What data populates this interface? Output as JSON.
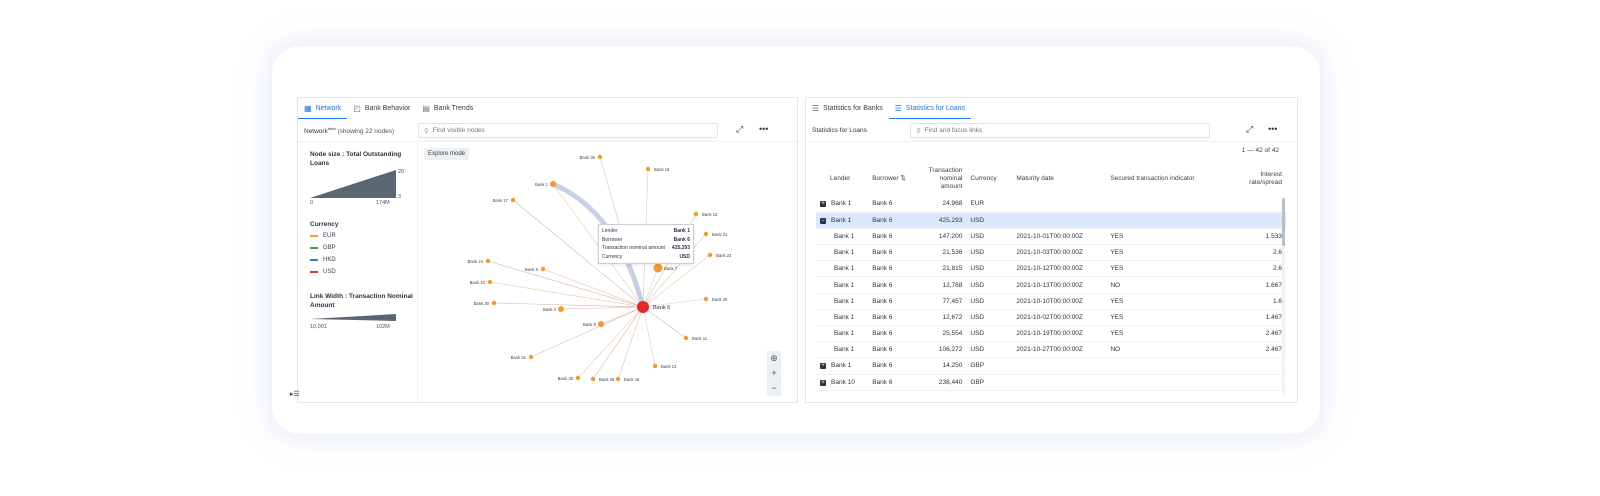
{
  "left": {
    "tabs": [
      {
        "label": "Network",
        "icon": "network-icon",
        "active": true
      },
      {
        "label": "Bank Behavior",
        "icon": "chart-icon",
        "active": false
      },
      {
        "label": "Bank Trends",
        "icon": "trends-icon",
        "active": false
      }
    ],
    "toolbar": {
      "title": "Network",
      "beta": "beta",
      "subtitle": "(showing 22 nodes)",
      "search_placeholder": "Find visible nodes"
    },
    "legend": {
      "node_size_title": "Node size : Total Outstanding Loans",
      "node_size_min": "0",
      "node_size_max": "174M",
      "node_size_small": "3",
      "node_size_large": "20",
      "currency_title": "Currency",
      "currencies": [
        {
          "label": "EUR",
          "color": "#f29a2e"
        },
        {
          "label": "GBP",
          "color": "#3ca64a"
        },
        {
          "label": "HKD",
          "color": "#2f7fd6"
        },
        {
          "label": "USD",
          "color": "#d33a2f"
        }
      ],
      "link_title": "Link Width : Transaction Nominal Amount",
      "link_min": "10,001",
      "link_max": "102M"
    },
    "explore_label": "Explore mode",
    "tooltip": {
      "rows": [
        {
          "k": "Lender",
          "v": "Bank 1"
        },
        {
          "k": "Borrower",
          "v": "Bank 6"
        },
        {
          "k": "Transaction nominal amount",
          "v": "425,293"
        },
        {
          "k": "Currency",
          "v": "USD"
        }
      ]
    },
    "center_node": "Bank 6",
    "nodes": [
      {
        "label": "Bank 36"
      },
      {
        "label": "Bank 16"
      },
      {
        "label": "Bank 1"
      },
      {
        "label": "Bank 17"
      },
      {
        "label": "Bank 13"
      },
      {
        "label": "Bank 21"
      },
      {
        "label": "Bank 23"
      },
      {
        "label": "Bank 24"
      },
      {
        "label": "Bank 9"
      },
      {
        "label": "Bank 7"
      },
      {
        "label": "Bank 10"
      },
      {
        "label": "Bank 30"
      },
      {
        "label": "Bank 4"
      },
      {
        "label": "Bank 20"
      },
      {
        "label": "Bank 5"
      },
      {
        "label": "Bank 11"
      },
      {
        "label": "Bank 31"
      },
      {
        "label": "Bank 13"
      },
      {
        "label": "Bank 35"
      },
      {
        "label": "Bank 26"
      },
      {
        "label": "Bank 18"
      }
    ]
  },
  "right": {
    "tabs": [
      {
        "label": "Statistics for Banks",
        "icon": "list-icon",
        "active": false
      },
      {
        "label": "Statistics for Loans",
        "icon": "list-icon",
        "active": true
      }
    ],
    "toolbar": {
      "title": "Statistics for Loans",
      "search_placeholder": "Find and focus links"
    },
    "count": "1 — 42 of 42",
    "columns": [
      "Lender",
      "Borrower",
      "Transaction nominal amount",
      "Currency",
      "Maturity date",
      "Secured transaction indicator",
      "Interest rate/spread"
    ],
    "rows": [
      {
        "expander": "+",
        "lender": "Bank 1",
        "borrower": "Bank 6",
        "amount": "24,968",
        "currency": "EUR",
        "maturity": "",
        "secured": "",
        "rate": "",
        "selected": false
      },
      {
        "expander": "−",
        "lender": "Bank 1",
        "borrower": "Bank 6",
        "amount": "425,293",
        "currency": "USD",
        "maturity": "",
        "secured": "",
        "rate": "",
        "selected": true
      },
      {
        "expander": "",
        "lender": "Bank 1",
        "borrower": "Bank 6",
        "amount": "147,200",
        "currency": "USD",
        "maturity": "2021-10-01T00:00:00Z",
        "secured": "YES",
        "rate": "1.533",
        "selected": false
      },
      {
        "expander": "",
        "lender": "Bank 1",
        "borrower": "Bank 6",
        "amount": "21,536",
        "currency": "USD",
        "maturity": "2021-10-03T00:00:00Z",
        "secured": "YES",
        "rate": "2.6",
        "selected": false
      },
      {
        "expander": "",
        "lender": "Bank 1",
        "borrower": "Bank 6",
        "amount": "21,815",
        "currency": "USD",
        "maturity": "2021-10-12T00:00:00Z",
        "secured": "YES",
        "rate": "2.6",
        "selected": false
      },
      {
        "expander": "",
        "lender": "Bank 1",
        "borrower": "Bank 6",
        "amount": "12,788",
        "currency": "USD",
        "maturity": "2021-10-13T00:00:00Z",
        "secured": "NO",
        "rate": "1.667",
        "selected": false
      },
      {
        "expander": "",
        "lender": "Bank 1",
        "borrower": "Bank 6",
        "amount": "77,457",
        "currency": "USD",
        "maturity": "2021-10-10T00:00:00Z",
        "secured": "YES",
        "rate": "1.6",
        "selected": false
      },
      {
        "expander": "",
        "lender": "Bank 1",
        "borrower": "Bank 6",
        "amount": "12,672",
        "currency": "USD",
        "maturity": "2021-10-02T00:00:00Z",
        "secured": "YES",
        "rate": "1.467",
        "selected": false
      },
      {
        "expander": "",
        "lender": "Bank 1",
        "borrower": "Bank 6",
        "amount": "25,554",
        "currency": "USD",
        "maturity": "2021-10-19T00:00:00Z",
        "secured": "YES",
        "rate": "2.467",
        "selected": false
      },
      {
        "expander": "",
        "lender": "Bank 1",
        "borrower": "Bank 6",
        "amount": "106,272",
        "currency": "USD",
        "maturity": "2021-10-27T00:00:00Z",
        "secured": "NO",
        "rate": "2.467",
        "selected": false
      },
      {
        "expander": "+",
        "lender": "Bank 1",
        "borrower": "Bank 6",
        "amount": "14,250",
        "currency": "GBP",
        "maturity": "",
        "secured": "",
        "rate": "",
        "selected": false
      },
      {
        "expander": "+",
        "lender": "Bank 10",
        "borrower": "Bank 6",
        "amount": "238,440",
        "currency": "GBP",
        "maturity": "",
        "secured": "",
        "rate": "",
        "selected": false
      }
    ]
  }
}
